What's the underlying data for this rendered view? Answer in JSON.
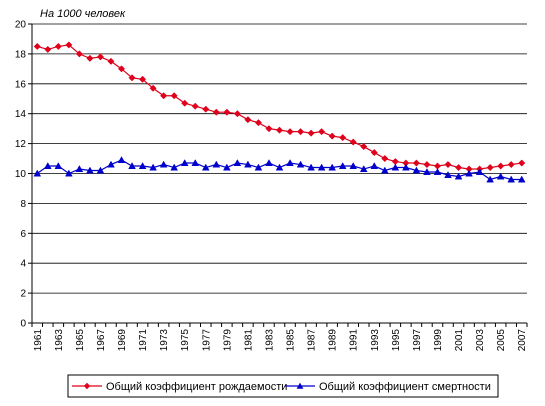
{
  "chart_data": {
    "type": "line",
    "unit_label": "На 1000 человек",
    "ylim": [
      0,
      20
    ],
    "y_ticks": [
      0,
      2,
      4,
      6,
      8,
      10,
      12,
      14,
      16,
      18,
      20
    ],
    "x": [
      1961,
      1962,
      1963,
      1964,
      1965,
      1966,
      1967,
      1968,
      1969,
      1970,
      1971,
      1972,
      1973,
      1974,
      1975,
      1976,
      1977,
      1978,
      1979,
      1980,
      1981,
      1982,
      1983,
      1984,
      1985,
      1986,
      1987,
      1988,
      1989,
      1990,
      1991,
      1992,
      1993,
      1994,
      1995,
      1996,
      1997,
      1998,
      1999,
      2000,
      2001,
      2002,
      2003,
      2004,
      2005,
      2006,
      2007
    ],
    "x_tick_labels": [
      "1961",
      "1963",
      "1965",
      "1967",
      "1969",
      "1971",
      "1973",
      "1975",
      "1977",
      "1979",
      "1981",
      "1983",
      "1985",
      "1987",
      "1989",
      "1991",
      "1993",
      "1995",
      "1997",
      "1999",
      "2001",
      "2003",
      "2005",
      "2007"
    ],
    "grid": "horizontal",
    "legend_position": "bottom",
    "series": [
      {
        "name": "Общий коэффициент рождаемости",
        "color": "#e0001b",
        "marker": "diamond",
        "values": [
          18.5,
          18.3,
          18.5,
          18.6,
          18.0,
          17.7,
          17.8,
          17.5,
          17.0,
          16.4,
          16.3,
          15.7,
          15.2,
          15.2,
          14.7,
          14.5,
          14.3,
          14.1,
          14.1,
          14.0,
          13.6,
          13.4,
          13.0,
          12.9,
          12.8,
          12.8,
          12.7,
          12.8,
          12.5,
          12.4,
          12.1,
          11.8,
          11.4,
          11.0,
          10.8,
          10.7,
          10.7,
          10.6,
          10.5,
          10.6,
          10.4,
          10.3,
          10.3,
          10.4,
          10.5,
          10.6,
          10.7
        ]
      },
      {
        "name": "Общий коэффициент смертности",
        "color": "#0000cc",
        "marker": "triangle",
        "values": [
          10.0,
          10.5,
          10.5,
          10.0,
          10.3,
          10.2,
          10.2,
          10.6,
          10.9,
          10.5,
          10.5,
          10.4,
          10.6,
          10.4,
          10.7,
          10.7,
          10.4,
          10.6,
          10.4,
          10.7,
          10.6,
          10.4,
          10.7,
          10.4,
          10.7,
          10.6,
          10.4,
          10.4,
          10.4,
          10.5,
          10.5,
          10.3,
          10.5,
          10.2,
          10.4,
          10.4,
          10.2,
          10.1,
          10.1,
          9.9,
          9.8,
          10.0,
          10.1,
          9.6,
          9.8,
          9.6,
          9.6
        ]
      }
    ]
  }
}
